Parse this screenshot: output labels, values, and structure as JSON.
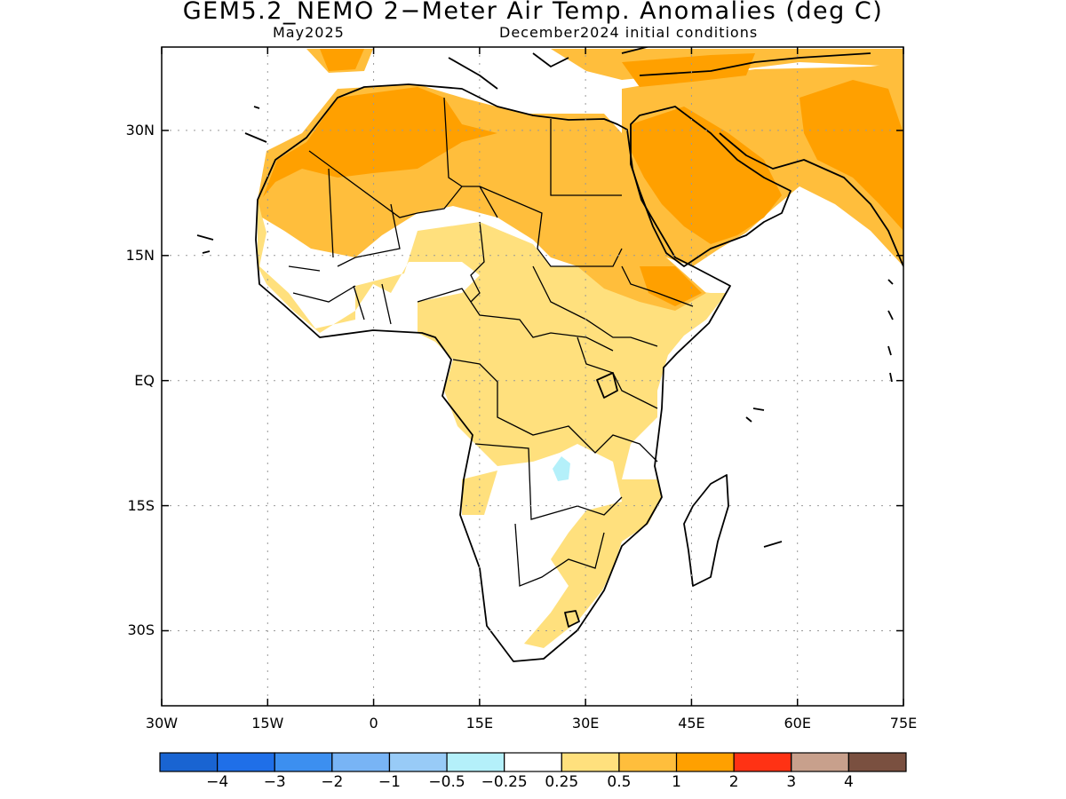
{
  "title": "GEM5.2_NEMO 2−Meter Air Temp. Anomalies (deg C)",
  "subtitle_left": "May2025",
  "subtitle_right": "December2024 initial conditions",
  "map": {
    "lon_range": [
      -30,
      75
    ],
    "lat_range": [
      -39,
      40
    ],
    "grid": true,
    "y_ticks": [
      {
        "lat": 30,
        "label": "30N"
      },
      {
        "lat": 15,
        "label": "15N"
      },
      {
        "lat": 0,
        "label": "EQ"
      },
      {
        "lat": -15,
        "label": "15S"
      },
      {
        "lat": -30,
        "label": "30S"
      }
    ],
    "x_ticks": [
      {
        "lon": -30,
        "label": "30W"
      },
      {
        "lon": -15,
        "label": "15W"
      },
      {
        "lon": 0,
        "label": "0"
      },
      {
        "lon": 15,
        "label": "15E"
      },
      {
        "lon": 30,
        "label": "30E"
      },
      {
        "lon": 45,
        "label": "45E"
      },
      {
        "lon": 60,
        "label": "60E"
      },
      {
        "lon": 75,
        "label": "75E"
      }
    ]
  },
  "colorbar": {
    "colors": [
      "#1964d2",
      "#1f6fe8",
      "#3c8ff0",
      "#78b4f5",
      "#98cbf7",
      "#b4f0fa",
      "#ffffff",
      "#ffe07d",
      "#ffbe3c",
      "#ffa000",
      "#ff3214",
      "#c8a08c",
      "#7a5040"
    ],
    "labels": [
      "−4",
      "−3",
      "−2",
      "−1",
      "−0.5",
      "−0.25",
      "0.25",
      "0.5",
      "1",
      "2",
      "3",
      "4"
    ]
  }
}
